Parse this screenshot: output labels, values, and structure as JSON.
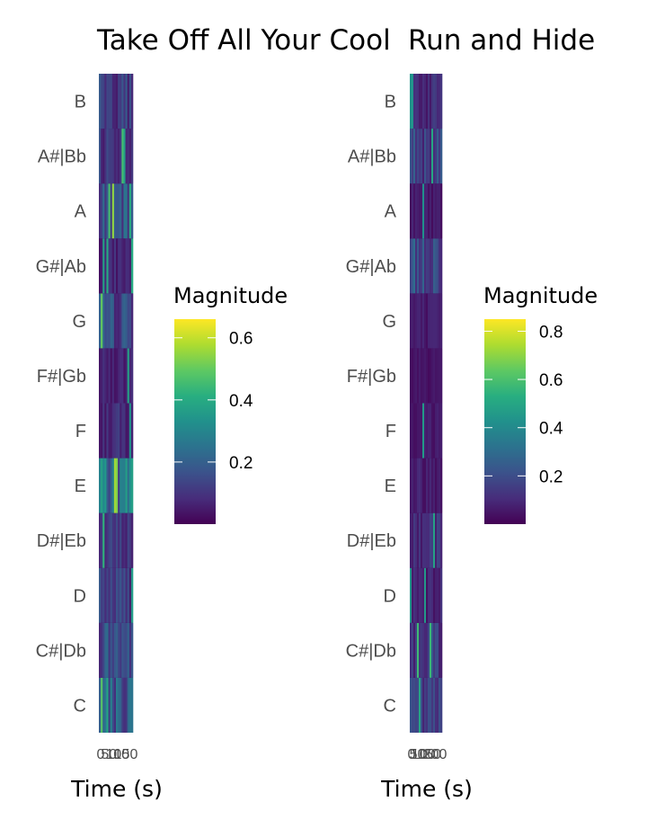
{
  "chart_data": [
    {
      "type": "heatmap",
      "title": "Take Off All Your Cool",
      "xlabel": "Time (s)",
      "ylabel": "",
      "x_tick_labels": [
        "0",
        "50",
        "100",
        "150"
      ],
      "pitch_classes": [
        "C",
        "C#|Db",
        "D",
        "D#|Eb",
        "E",
        "F",
        "F#|Gb",
        "G",
        "G#|Ab",
        "A",
        "A#|Bb",
        "B"
      ],
      "legend": {
        "title": "Magnitude",
        "ticks": [
          0.2,
          0.4,
          0.6
        ],
        "range": [
          0.0,
          0.66
        ],
        "colormap": "viridis",
        "placement": "right"
      },
      "grid": false,
      "mean_magnitude_by_pitch": [
        0.18,
        0.16,
        0.12,
        0.1,
        0.25,
        0.08,
        0.06,
        0.14,
        0.07,
        0.16,
        0.11,
        0.12
      ]
    },
    {
      "type": "heatmap",
      "title": "Run and Hide",
      "xlabel": "Time (s)",
      "ylabel": "",
      "x_tick_labels": [
        "0",
        "50",
        "100",
        "150",
        "200"
      ],
      "pitch_classes": [
        "C",
        "C#|Db",
        "D",
        "D#|Eb",
        "E",
        "F",
        "F#|Gb",
        "G",
        "G#|Ab",
        "A",
        "A#|Bb",
        "B"
      ],
      "legend": {
        "title": "Magnitude",
        "ticks": [
          0.2,
          0.4,
          0.6,
          0.8
        ],
        "range": [
          0.0,
          0.85
        ],
        "colormap": "viridis",
        "placement": "right"
      },
      "grid": false,
      "mean_magnitude_by_pitch": [
        0.14,
        0.16,
        0.08,
        0.13,
        0.07,
        0.06,
        0.05,
        0.06,
        0.2,
        0.06,
        0.18,
        0.1
      ]
    }
  ]
}
